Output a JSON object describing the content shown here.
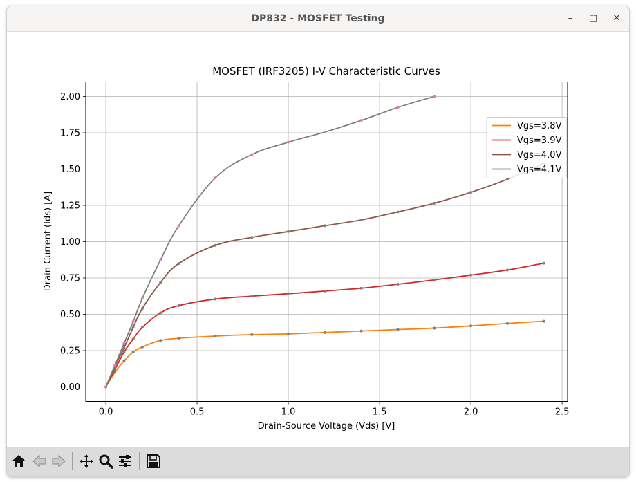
{
  "window": {
    "title": "DP832 - MOSFET Testing"
  },
  "window_controls": {
    "minimize": "–",
    "maximize": "□",
    "close": "✕"
  },
  "toolbar": {
    "buttons": [
      {
        "icon": "home-icon"
      },
      {
        "icon": "back-arrow-icon"
      },
      {
        "icon": "forward-arrow-icon"
      },
      {
        "icon": "pan-icon"
      },
      {
        "icon": "zoom-icon"
      },
      {
        "icon": "configure-subplots-icon"
      },
      {
        "icon": "save-icon"
      }
    ]
  },
  "chart_data": {
    "type": "line",
    "title": "MOSFET (IRF3205) I-V Characteristic Curves",
    "xlabel": "Drain-Source Voltage (Vds) [V]",
    "ylabel": "Drain Current (Ids) [A]",
    "xlim": [
      -0.11,
      2.53
    ],
    "ylim": [
      -0.1,
      2.1
    ],
    "xticks": [
      0.0,
      0.5,
      1.0,
      1.5,
      2.0,
      2.5
    ],
    "xtick_labels": [
      "0.0",
      "0.5",
      "1.0",
      "1.5",
      "2.0",
      "2.5"
    ],
    "yticks": [
      0.0,
      0.25,
      0.5,
      0.75,
      1.0,
      1.25,
      1.5,
      1.75,
      2.0
    ],
    "ytick_labels": [
      "0.00",
      "0.25",
      "0.50",
      "0.75",
      "1.00",
      "1.25",
      "1.50",
      "1.75",
      "2.00"
    ],
    "grid": true,
    "legend_position": "top-right",
    "series": [
      {
        "name": "Vgs=3.8V",
        "color": "#ff7f0e",
        "marker_color": "#7f7f7f",
        "x": [
          0.0,
          0.05,
          0.1,
          0.15,
          0.2,
          0.3,
          0.4,
          0.6,
          0.8,
          1.0,
          1.2,
          1.4,
          1.6,
          1.8,
          2.0,
          2.2,
          2.4
        ],
        "y": [
          0.0,
          0.1,
          0.18,
          0.24,
          0.275,
          0.32,
          0.335,
          0.35,
          0.36,
          0.365,
          0.375,
          0.385,
          0.395,
          0.405,
          0.42,
          0.437,
          0.452
        ]
      },
      {
        "name": "Vgs=3.9V",
        "color": "#d62728",
        "marker_color": "#7f7f7f",
        "x": [
          0.0,
          0.05,
          0.1,
          0.15,
          0.2,
          0.3,
          0.4,
          0.6,
          0.8,
          1.0,
          1.2,
          1.4,
          1.6,
          1.8,
          2.0,
          2.2,
          2.4
        ],
        "y": [
          0.0,
          0.12,
          0.24,
          0.33,
          0.41,
          0.51,
          0.56,
          0.605,
          0.625,
          0.642,
          0.66,
          0.68,
          0.707,
          0.737,
          0.77,
          0.805,
          0.852
        ]
      },
      {
        "name": "Vgs=4.0V",
        "color": "#8c564b",
        "marker_color": "#7f7f7f",
        "x": [
          0.0,
          0.05,
          0.1,
          0.15,
          0.2,
          0.3,
          0.4,
          0.6,
          0.8,
          1.0,
          1.2,
          1.4,
          1.6,
          1.8,
          2.0,
          2.2,
          2.4
        ],
        "y": [
          0.0,
          0.14,
          0.27,
          0.41,
          0.54,
          0.72,
          0.85,
          0.975,
          1.03,
          1.07,
          1.11,
          1.15,
          1.205,
          1.265,
          1.34,
          1.43,
          1.54
        ]
      },
      {
        "name": "Vgs=4.1V",
        "color": "#7f7f7f",
        "marker_color": "#e377c2",
        "x": [
          0.0,
          0.05,
          0.1,
          0.15,
          0.2,
          0.3,
          0.4,
          0.6,
          0.8,
          1.0,
          1.2,
          1.4,
          1.6,
          1.8
        ],
        "y": [
          0.0,
          0.15,
          0.3,
          0.45,
          0.61,
          0.875,
          1.11,
          1.44,
          1.6,
          1.685,
          1.755,
          1.835,
          1.925,
          2.0
        ]
      }
    ]
  }
}
